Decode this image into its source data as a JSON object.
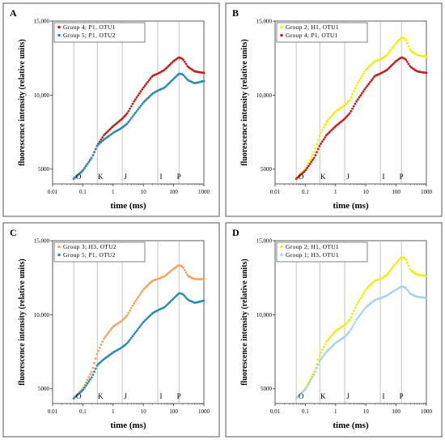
{
  "figure": {
    "panels": [
      "A",
      "B",
      "C",
      "D"
    ]
  },
  "chart_data": [
    {
      "panel": "A",
      "type": "scatter",
      "xlabel": "time (ms)",
      "ylabel": "fluorescence intensity (relative units)",
      "x_scale": "log",
      "xlim": [
        0.01,
        1000
      ],
      "ylim": [
        4000,
        15000
      ],
      "x_ticks": [
        "0.01",
        "0.1",
        "1",
        "10",
        "100",
        "1000"
      ],
      "y_ticks": [
        "5000",
        "10,000",
        "15,000"
      ],
      "phase_markers": [
        {
          "label": "O",
          "x": 0.05
        },
        {
          "label": "K",
          "x": 0.3
        },
        {
          "label": "J",
          "x": 2
        },
        {
          "label": "I",
          "x": 30
        },
        {
          "label": "P",
          "x": 150
        }
      ],
      "legend": "top-left",
      "series": [
        {
          "name": "Group 4; P1, OTU1",
          "color": "#c0211e",
          "points": [
            [
              0.05,
              4350
            ],
            [
              0.1,
              4900
            ],
            [
              0.2,
              5800
            ],
            [
              0.3,
              6600
            ],
            [
              0.5,
              7300
            ],
            [
              1,
              7900
            ],
            [
              2,
              8400
            ],
            [
              3,
              8800
            ],
            [
              5,
              9600
            ],
            [
              10,
              10500
            ],
            [
              20,
              11300
            ],
            [
              30,
              11450
            ],
            [
              50,
              11700
            ],
            [
              100,
              12300
            ],
            [
              150,
              12550
            ],
            [
              200,
              12450
            ],
            [
              300,
              11900
            ],
            [
              500,
              11600
            ],
            [
              1000,
              11500
            ]
          ]
        },
        {
          "name": "Group 5; P1, OTU2",
          "color": "#2e8bb0",
          "points": [
            [
              0.05,
              4350
            ],
            [
              0.1,
              4900
            ],
            [
              0.2,
              5800
            ],
            [
              0.3,
              6600
            ],
            [
              0.5,
              7000
            ],
            [
              1,
              7450
            ],
            [
              2,
              7800
            ],
            [
              3,
              8100
            ],
            [
              5,
              8700
            ],
            [
              10,
              9500
            ],
            [
              20,
              10100
            ],
            [
              30,
              10300
            ],
            [
              50,
              10500
            ],
            [
              100,
              11100
            ],
            [
              150,
              11450
            ],
            [
              200,
              11400
            ],
            [
              300,
              11000
            ],
            [
              500,
              10800
            ],
            [
              1000,
              10950
            ]
          ]
        }
      ]
    },
    {
      "panel": "B",
      "type": "scatter",
      "xlabel": "time (ms)",
      "ylabel": "fluorescence intensity (relative units)",
      "x_scale": "log",
      "xlim": [
        0.01,
        1000
      ],
      "ylim": [
        4000,
        15000
      ],
      "x_ticks": [
        "0.01",
        "0.1",
        "1",
        "10",
        "100",
        "1000"
      ],
      "y_ticks": [
        "5000",
        "10,000",
        "15,000"
      ],
      "phase_markers": [
        {
          "label": "O",
          "x": 0.05
        },
        {
          "label": "K",
          "x": 0.3
        },
        {
          "label": "J",
          "x": 2
        },
        {
          "label": "I",
          "x": 30
        },
        {
          "label": "P",
          "x": 150
        }
      ],
      "legend": "top-left",
      "series": [
        {
          "name": "Group 2; H1, OTU1",
          "color": "#f2ee0c",
          "points": [
            [
              0.05,
              4350
            ],
            [
              0.1,
              5000
            ],
            [
              0.2,
              6200
            ],
            [
              0.3,
              7300
            ],
            [
              0.5,
              8200
            ],
            [
              1,
              8900
            ],
            [
              2,
              9300
            ],
            [
              3,
              9700
            ],
            [
              5,
              10700
            ],
            [
              10,
              11700
            ],
            [
              20,
              12300
            ],
            [
              30,
              12400
            ],
            [
              50,
              12700
            ],
            [
              100,
              13500
            ],
            [
              150,
              13900
            ],
            [
              200,
              13800
            ],
            [
              300,
              13000
            ],
            [
              500,
              12700
            ],
            [
              1000,
              12600
            ]
          ]
        },
        {
          "name": "Group 4; P1, OTU1",
          "color": "#c0211e",
          "points": [
            [
              0.05,
              4350
            ],
            [
              0.1,
              4900
            ],
            [
              0.2,
              5800
            ],
            [
              0.3,
              6600
            ],
            [
              0.5,
              7300
            ],
            [
              1,
              7900
            ],
            [
              2,
              8400
            ],
            [
              3,
              8800
            ],
            [
              5,
              9600
            ],
            [
              10,
              10500
            ],
            [
              20,
              11300
            ],
            [
              30,
              11450
            ],
            [
              50,
              11700
            ],
            [
              100,
              12300
            ],
            [
              150,
              12550
            ],
            [
              200,
              12450
            ],
            [
              300,
              11900
            ],
            [
              500,
              11600
            ],
            [
              1000,
              11500
            ]
          ]
        }
      ]
    },
    {
      "panel": "C",
      "type": "scatter",
      "xlabel": "time (ms)",
      "ylabel": "fluorescence intensity (relative units)",
      "x_scale": "log",
      "xlim": [
        0.01,
        1000
      ],
      "ylim": [
        4000,
        15000
      ],
      "x_ticks": [
        "0.01",
        "0.1",
        "1",
        "10",
        "100",
        "1000"
      ],
      "y_ticks": [
        "5000",
        "10,000",
        "15,000"
      ],
      "phase_markers": [
        {
          "label": "O",
          "x": 0.05
        },
        {
          "label": "K",
          "x": 0.3
        },
        {
          "label": "J",
          "x": 2
        },
        {
          "label": "I",
          "x": 30
        },
        {
          "label": "P",
          "x": 150
        }
      ],
      "legend": "top-left",
      "series": [
        {
          "name": "Group 3; H3, OTU2",
          "color": "#f4a460",
          "points": [
            [
              0.05,
              4350
            ],
            [
              0.1,
              5000
            ],
            [
              0.2,
              6200
            ],
            [
              0.3,
              7400
            ],
            [
              0.5,
              8400
            ],
            [
              1,
              9200
            ],
            [
              2,
              9600
            ],
            [
              3,
              10000
            ],
            [
              5,
              10800
            ],
            [
              10,
              11700
            ],
            [
              20,
              12300
            ],
            [
              30,
              12400
            ],
            [
              50,
              12600
            ],
            [
              100,
              13100
            ],
            [
              150,
              13350
            ],
            [
              200,
              13250
            ],
            [
              300,
              12600
            ],
            [
              500,
              12400
            ],
            [
              1000,
              12400
            ]
          ]
        },
        {
          "name": "Group 5; P1, OTU2",
          "color": "#2e8bb0",
          "points": [
            [
              0.05,
              4350
            ],
            [
              0.1,
              4900
            ],
            [
              0.2,
              5800
            ],
            [
              0.3,
              6600
            ],
            [
              0.5,
              7000
            ],
            [
              1,
              7450
            ],
            [
              2,
              7800
            ],
            [
              3,
              8100
            ],
            [
              5,
              8700
            ],
            [
              10,
              9500
            ],
            [
              20,
              10100
            ],
            [
              30,
              10300
            ],
            [
              50,
              10500
            ],
            [
              100,
              11100
            ],
            [
              150,
              11450
            ],
            [
              200,
              11400
            ],
            [
              300,
              11000
            ],
            [
              500,
              10800
            ],
            [
              1000,
              10950
            ]
          ]
        }
      ]
    },
    {
      "panel": "D",
      "type": "scatter",
      "xlabel": "time (ms)",
      "ylabel": "fluorescence intensity (relative units)",
      "x_scale": "log",
      "xlim": [
        0.01,
        1000
      ],
      "ylim": [
        4000,
        15000
      ],
      "x_ticks": [
        "0.01",
        "0.1",
        "1",
        "10",
        "100",
        "1000"
      ],
      "y_ticks": [
        "5000",
        "10,000",
        "15,000"
      ],
      "phase_markers": [
        {
          "label": "O",
          "x": 0.05
        },
        {
          "label": "K",
          "x": 0.3
        },
        {
          "label": "J",
          "x": 2
        },
        {
          "label": "I",
          "x": 30
        },
        {
          "label": "P",
          "x": 150
        }
      ],
      "legend": "top-left",
      "series": [
        {
          "name": "Group 2; H1, OTU1",
          "color": "#f2ee0c",
          "points": [
            [
              0.05,
              4350
            ],
            [
              0.1,
              5000
            ],
            [
              0.2,
              6200
            ],
            [
              0.3,
              7300
            ],
            [
              0.5,
              8200
            ],
            [
              1,
              8900
            ],
            [
              2,
              9300
            ],
            [
              3,
              9700
            ],
            [
              5,
              10700
            ],
            [
              10,
              11700
            ],
            [
              20,
              12300
            ],
            [
              30,
              12400
            ],
            [
              50,
              12700
            ],
            [
              100,
              13500
            ],
            [
              150,
              13900
            ],
            [
              200,
              13800
            ],
            [
              300,
              13000
            ],
            [
              500,
              12700
            ],
            [
              1000,
              12600
            ]
          ]
        },
        {
          "name": "Group 1; H3, OTU1",
          "color": "#a6d4e6",
          "points": [
            [
              0.05,
              4350
            ],
            [
              0.1,
              4950
            ],
            [
              0.2,
              6000
            ],
            [
              0.3,
              6900
            ],
            [
              0.5,
              7500
            ],
            [
              1,
              8100
            ],
            [
              2,
              8500
            ],
            [
              3,
              8900
            ],
            [
              5,
              9700
            ],
            [
              10,
              10500
            ],
            [
              20,
              11000
            ],
            [
              30,
              11100
            ],
            [
              50,
              11300
            ],
            [
              100,
              11700
            ],
            [
              150,
              11900
            ],
            [
              200,
              11850
            ],
            [
              300,
              11400
            ],
            [
              500,
              11200
            ],
            [
              1000,
              11150
            ]
          ]
        }
      ]
    }
  ]
}
